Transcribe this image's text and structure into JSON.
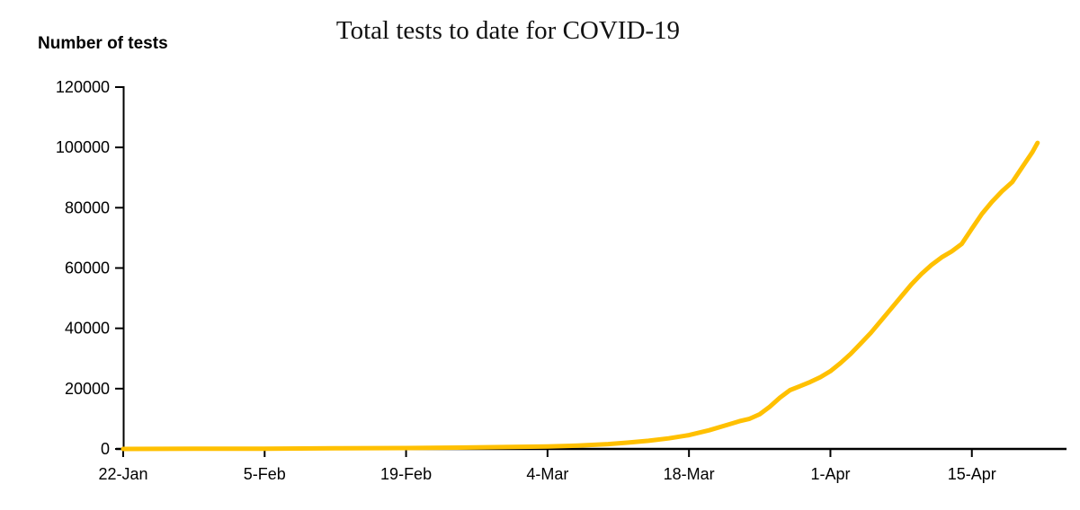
{
  "title": "Total tests to date for COVID-19",
  "y_axis_title": "Number of tests",
  "colors": {
    "line": "#FFC000",
    "axis": "#000000",
    "text": "#000000",
    "background": "#FFFFFF"
  },
  "chart_data": {
    "type": "line",
    "title": "Total tests to date for COVID-19",
    "ylabel": "Number of tests",
    "xlabel": "",
    "grid": false,
    "legend": "none",
    "ylim": [
      0,
      120000
    ],
    "y_ticks": [
      0,
      20000,
      40000,
      60000,
      80000,
      100000,
      120000
    ],
    "y_tick_labels": [
      "0",
      "20000",
      "40000",
      "60000",
      "80000",
      "100000",
      "120000"
    ],
    "x_ticks_days": [
      0,
      14,
      28,
      42,
      56,
      70,
      84
    ],
    "x_tick_labels": [
      "22-Jan",
      "5-Feb",
      "19-Feb",
      "4-Mar",
      "18-Mar",
      "1-Apr",
      "15-Apr"
    ],
    "x_range_days": [
      0,
      93.3
    ],
    "series": [
      {
        "name": "Total tests to date",
        "color": "#FFC000",
        "points": [
          {
            "d": 0,
            "v": 0
          },
          {
            "d": 7,
            "v": 50
          },
          {
            "d": 14,
            "v": 100
          },
          {
            "d": 21,
            "v": 200
          },
          {
            "d": 28,
            "v": 300
          },
          {
            "d": 35,
            "v": 500
          },
          {
            "d": 42,
            "v": 800
          },
          {
            "d": 45,
            "v": 1100
          },
          {
            "d": 48,
            "v": 1600
          },
          {
            "d": 50,
            "v": 2100
          },
          {
            "d": 52,
            "v": 2700
          },
          {
            "d": 54,
            "v": 3500
          },
          {
            "d": 56,
            "v": 4600
          },
          {
            "d": 58,
            "v": 6200
          },
          {
            "d": 60,
            "v": 8200
          },
          {
            "d": 61,
            "v": 9200
          },
          {
            "d": 62,
            "v": 10000
          },
          {
            "d": 63,
            "v": 11500
          },
          {
            "d": 64,
            "v": 14000
          },
          {
            "d": 65,
            "v": 17000
          },
          {
            "d": 66,
            "v": 19500
          },
          {
            "d": 67,
            "v": 20800
          },
          {
            "d": 68,
            "v": 22200
          },
          {
            "d": 69,
            "v": 23800
          },
          {
            "d": 70,
            "v": 25800
          },
          {
            "d": 71,
            "v": 28500
          },
          {
            "d": 72,
            "v": 31500
          },
          {
            "d": 73,
            "v": 35000
          },
          {
            "d": 74,
            "v": 38500
          },
          {
            "d": 75,
            "v": 42500
          },
          {
            "d": 76,
            "v": 46500
          },
          {
            "d": 77,
            "v": 50500
          },
          {
            "d": 78,
            "v": 54500
          },
          {
            "d": 79,
            "v": 58000
          },
          {
            "d": 80,
            "v": 61000
          },
          {
            "d": 81,
            "v": 63500
          },
          {
            "d": 82,
            "v": 65500
          },
          {
            "d": 83,
            "v": 68000
          },
          {
            "d": 84,
            "v": 73000
          },
          {
            "d": 85,
            "v": 78000
          },
          {
            "d": 86,
            "v": 82000
          },
          {
            "d": 87,
            "v": 85500
          },
          {
            "d": 88,
            "v": 88500
          },
          {
            "d": 89,
            "v": 93500
          },
          {
            "d": 90,
            "v": 98500
          },
          {
            "d": 90.5,
            "v": 101500
          }
        ]
      }
    ]
  }
}
